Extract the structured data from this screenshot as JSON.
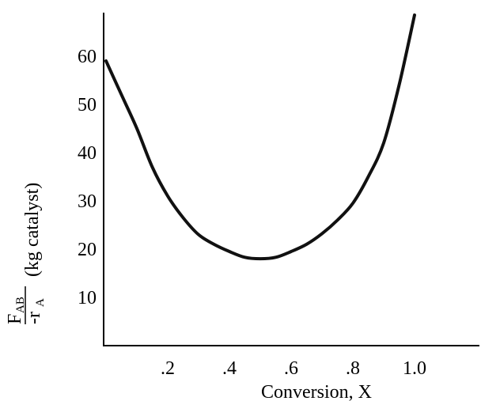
{
  "chart_data": {
    "type": "line",
    "ylabel": {
      "numerator": "F",
      "numerator_sub": "AB",
      "denominator": "-r",
      "denominator_sub": "A",
      "unit": "(kg catalyst)"
    },
    "xlabel": "Conversion, X",
    "x": [
      0,
      0.05,
      0.1,
      0.15,
      0.2,
      0.25,
      0.3,
      0.35,
      0.4,
      0.45,
      0.5,
      0.55,
      0.6,
      0.65,
      0.7,
      0.75,
      0.8,
      0.85,
      0.9,
      0.95,
      1.0
    ],
    "series": [
      {
        "color": "#111111",
        "values": [
          59,
          52,
          45,
          37,
          31,
          26.5,
          23,
          21,
          19.5,
          18.3,
          18,
          18.3,
          19.5,
          21,
          23.2,
          26,
          29.5,
          35,
          42,
          54,
          68.5
        ]
      }
    ],
    "xlim": [
      0,
      1.2
    ],
    "ylim": [
      0,
      69
    ],
    "xticks": [
      {
        "value": 0.2,
        "label": ".2"
      },
      {
        "value": 0.4,
        "label": ".4"
      },
      {
        "value": 0.6,
        "label": ".6"
      },
      {
        "value": 0.8,
        "label": ".8"
      },
      {
        "value": 1.0,
        "label": "1.0"
      }
    ],
    "yticks": [
      10,
      20,
      30,
      40,
      50,
      60
    ],
    "grid": false
  }
}
